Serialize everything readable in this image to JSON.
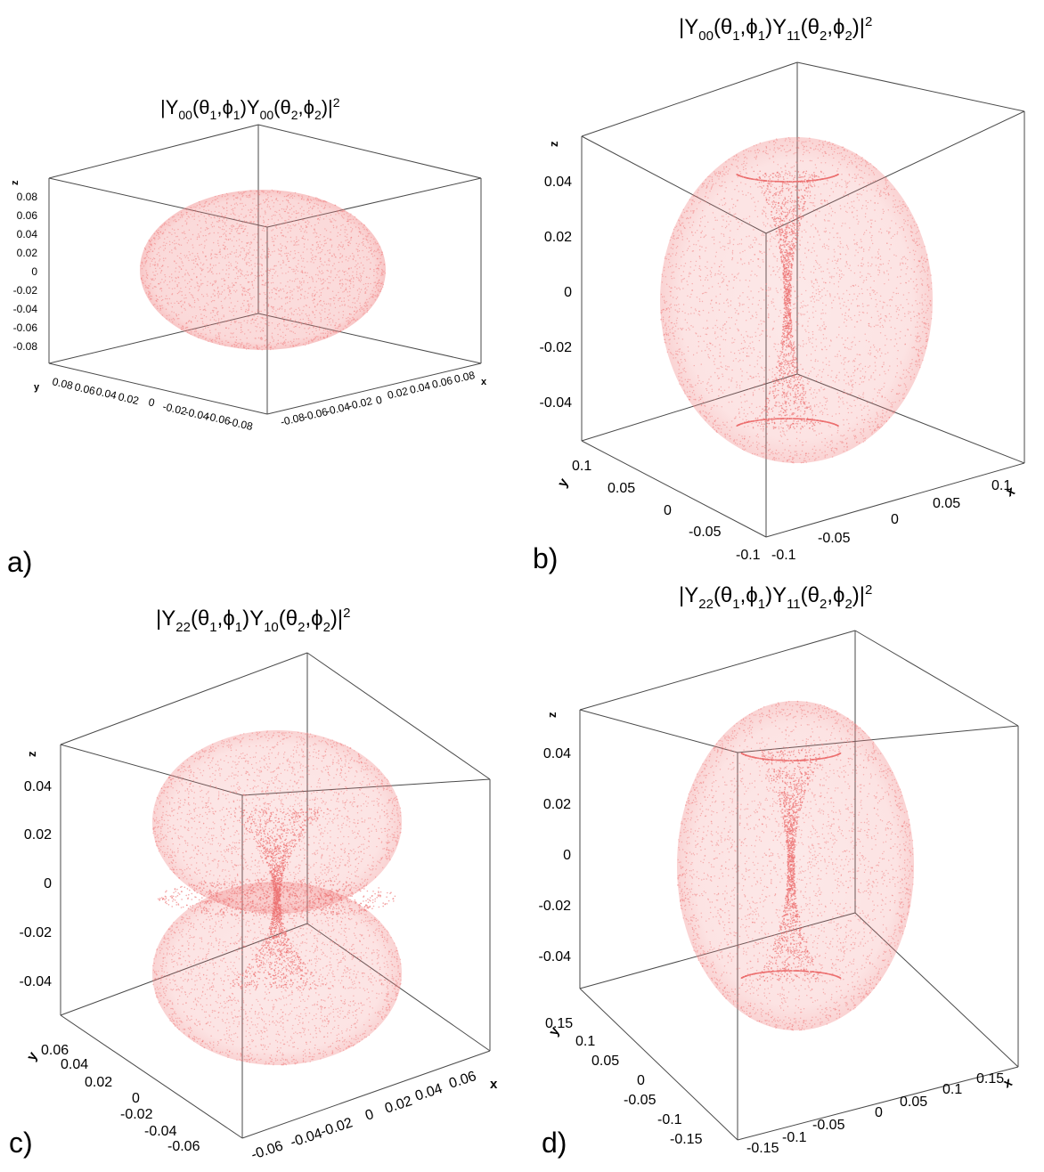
{
  "colors": {
    "points": "#f08080",
    "points_dense": "#ec7070",
    "frame": "#4a4a4a",
    "text": "#000000"
  },
  "chart_data": [
    {
      "type": "scatter3d",
      "panel_label": "a)",
      "title": {
        "prefix": "|Y",
        "sub1": "00",
        "mid1": "(θ",
        "sub2": "1",
        "mid2": ",ϕ",
        "sub3": "1",
        "mid3": ")Y",
        "sub4": "00",
        "mid4": "(θ",
        "sub5": "2",
        "mid5": ",ϕ",
        "sub6": "2",
        "mid6": ")|",
        "sup": "2"
      },
      "shape": "sphere",
      "xlabel": "x",
      "ylabel": "y",
      "zlabel": "z",
      "xlim": [
        -0.09,
        0.09
      ],
      "ylim": [
        -0.09,
        0.09
      ],
      "zlim": [
        -0.09,
        0.09
      ],
      "zticks": [
        "0.08",
        "0.06",
        "0.04",
        "0.02",
        "0",
        "-0.02",
        "-0.04",
        "-0.06",
        "-0.08"
      ],
      "xticks": [
        "-0.08",
        "-0.06",
        "-0.04",
        "-0.02",
        "0",
        "0.02",
        "0.04",
        "0.06",
        "0.08"
      ],
      "yticks": [
        "0.08",
        "0.06",
        "0.04",
        "0.02",
        "0",
        "-0.02",
        "-0.04",
        "-0.06",
        "-0.08"
      ]
    },
    {
      "type": "scatter3d",
      "panel_label": "b)",
      "title": {
        "prefix": "|Y",
        "sub1": "00",
        "mid1": "(θ",
        "sub2": "1",
        "mid2": ",ϕ",
        "sub3": "1",
        "mid3": ")Y",
        "sub4": "11",
        "mid4": "(θ",
        "sub5": "2",
        "mid5": ",ϕ",
        "sub6": "2",
        "mid6": ")|",
        "sup": "2"
      },
      "shape": "torus",
      "xlabel": "x",
      "ylabel": "y",
      "zlabel": "z",
      "xlim": [
        -0.1,
        0.1
      ],
      "ylim": [
        -0.1,
        0.1
      ],
      "zlim": [
        -0.05,
        0.05
      ],
      "zticks": [
        "0.04",
        "0.02",
        "0",
        "-0.02",
        "-0.04"
      ],
      "xticks": [
        "-0.1",
        "-0.05",
        "0",
        "0.05",
        "0.1"
      ],
      "yticks": [
        "0.1",
        "0.05",
        "0",
        "-0.05",
        "-0.1"
      ]
    },
    {
      "type": "scatter3d",
      "panel_label": "c)",
      "title": {
        "prefix": "|Y",
        "sub1": "22",
        "mid1": "(θ",
        "sub2": "1",
        "mid2": ",ϕ",
        "sub3": "1",
        "mid3": ")Y",
        "sub4": "10",
        "mid4": "(θ",
        "sub5": "2",
        "mid5": ",ϕ",
        "sub6": "2",
        "mid6": ")|",
        "sup": "2"
      },
      "shape": "double-torus",
      "xlabel": "x",
      "ylabel": "y",
      "zlabel": "z",
      "xlim": [
        -0.07,
        0.07
      ],
      "ylim": [
        -0.07,
        0.07
      ],
      "zlim": [
        -0.055,
        0.055
      ],
      "zticks": [
        "0.04",
        "0.02",
        "0",
        "-0.02",
        "-0.04"
      ],
      "xticks": [
        "-0.06",
        "-0.04",
        "-0.02",
        "0",
        "0.02",
        "0.04",
        "0.06"
      ],
      "yticks": [
        "0.06",
        "0.04",
        "0.02",
        "0",
        "-0.02",
        "-0.04",
        "-0.06"
      ]
    },
    {
      "type": "scatter3d",
      "panel_label": "d)",
      "title": {
        "prefix": "|Y",
        "sub1": "22",
        "mid1": "(θ",
        "sub2": "1",
        "mid2": ",ϕ",
        "sub3": "1",
        "mid3": ")Y",
        "sub4": "11",
        "mid4": "(θ",
        "sub5": "2",
        "mid5": ",ϕ",
        "sub6": "2",
        "mid6": ")|",
        "sup": "2"
      },
      "shape": "torus",
      "xlabel": "x",
      "ylabel": "y",
      "zlabel": "z",
      "xlim": [
        -0.15,
        0.15
      ],
      "ylim": [
        -0.15,
        0.15
      ],
      "zlim": [
        -0.055,
        0.055
      ],
      "zticks": [
        "0.04",
        "0.02",
        "0",
        "-0.02",
        "-0.04"
      ],
      "xticks": [
        "-0.15",
        "-0.1",
        "-0.05",
        "0",
        "0.05",
        "0.1",
        "0.15"
      ],
      "yticks": [
        "0.15",
        "0.1",
        "0.05",
        "0",
        "-0.05",
        "-0.1",
        "-0.15"
      ]
    }
  ]
}
